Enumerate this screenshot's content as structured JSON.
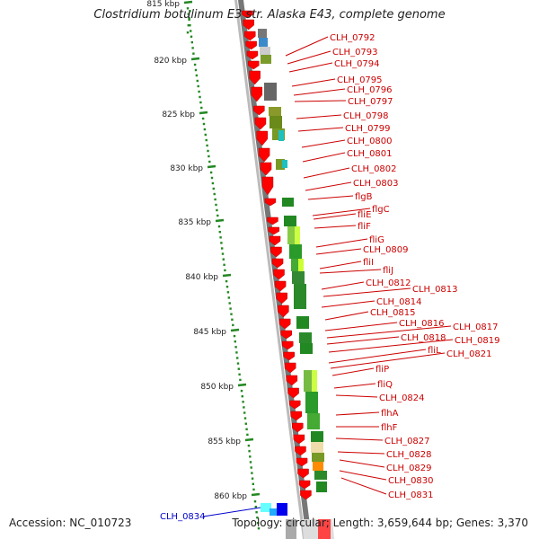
{
  "title": "Clostridium botulinum E3 str. Alaska E43, complete genome",
  "accession": "Accession: NC_010723",
  "topology": "Topology: circular; Length: 3,659,644 bp; Genes: 3,370",
  "kbp_ticks": [
    "815 kbp",
    "820 kbp",
    "825 kbp",
    "830 kbp",
    "835 kbp",
    "840 kbp",
    "845 kbp",
    "850 kbp",
    "855 kbp",
    "860 kbp"
  ],
  "gene_labels": [
    "CLH_0792",
    "CLH_0793",
    "CLH_0794",
    "CLH_0795",
    "CLH_0796",
    "CLH_0797",
    "CLH_0798",
    "CLH_0799",
    "CLH_0800",
    "CLH_0801",
    "CLH_0802",
    "CLH_0803",
    "flgB",
    "flgC",
    "fliE",
    "fliF",
    "fliG",
    "CLH_0809",
    "fliI",
    "fliJ",
    "CLH_0812",
    "CLH_0813",
    "CLH_0814",
    "CLH_0815",
    "CLH_0816",
    "CLH_0817",
    "CLH_0818",
    "CLH_0819",
    "fliL",
    "CLH_0821",
    "fliP",
    "fliQ",
    "CLH_0824",
    "flhA",
    "flhF",
    "CLH_0827",
    "CLH_0828",
    "CLH_0829",
    "CLH_0830",
    "CLH_0831"
  ],
  "left_label": "CLH_0834",
  "colors": {
    "gene_arrow": "#ff0000",
    "label_text": "#cc0000",
    "left_label": "#0000cc",
    "tick": "#228822",
    "backbone": "#777777"
  }
}
